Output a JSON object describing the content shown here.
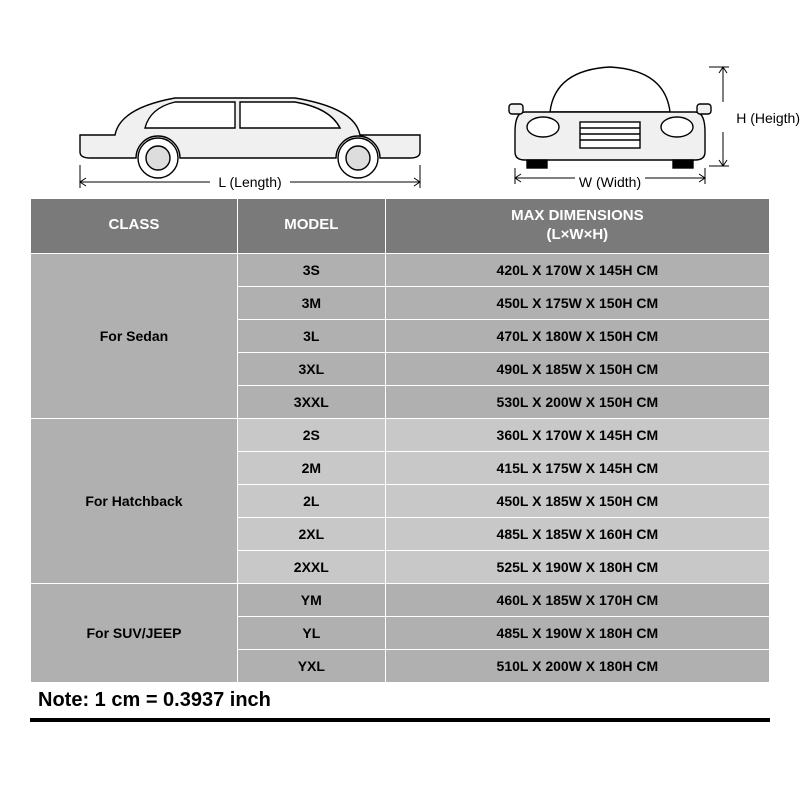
{
  "diagrams": {
    "length_label": "L (Length)",
    "width_label": "W (Width)",
    "height_label": "H (Heigth)"
  },
  "table": {
    "headers": {
      "class": "CLASS",
      "model": "MODEL",
      "dimensions": "MAX DIMENSIONS\n(L×W×H)"
    },
    "groups": [
      {
        "class_label": "For Sedan",
        "shade": "dark",
        "rows": [
          {
            "model": "3S",
            "dim": "420L X 170W X 145H CM"
          },
          {
            "model": "3M",
            "dim": "450L X 175W X 150H CM"
          },
          {
            "model": "3L",
            "dim": "470L X 180W X 150H CM"
          },
          {
            "model": "3XL",
            "dim": "490L X 185W X 150H CM"
          },
          {
            "model": "3XXL",
            "dim": "530L X 200W X 150H CM"
          }
        ]
      },
      {
        "class_label": "For Hatchback",
        "shade": "light",
        "rows": [
          {
            "model": "2S",
            "dim": "360L X 170W X 145H CM"
          },
          {
            "model": "2M",
            "dim": "415L X 175W X 145H CM"
          },
          {
            "model": "2L",
            "dim": "450L X 185W X 150H CM"
          },
          {
            "model": "2XL",
            "dim": "485L X 185W X 160H CM"
          },
          {
            "model": "2XXL",
            "dim": "525L X 190W X 180H CM"
          }
        ]
      },
      {
        "class_label": "For SUV/JEEP",
        "shade": "dark",
        "rows": [
          {
            "model": "YM",
            "dim": "460L X 185W X 170H CM"
          },
          {
            "model": "YL",
            "dim": "485L X 190W X 180H CM"
          },
          {
            "model": "YXL",
            "dim": "510L X 200W X 180H CM"
          }
        ]
      }
    ],
    "note": {
      "label": "Note:",
      "text": "1 cm = 0.3937 inch"
    }
  },
  "colors": {
    "header_bg": "#7a7a7a",
    "dark_cell": "#b0b0b0",
    "light_cell": "#c8c8c8",
    "grid": "#ffffff",
    "note_underline": "#000000"
  }
}
